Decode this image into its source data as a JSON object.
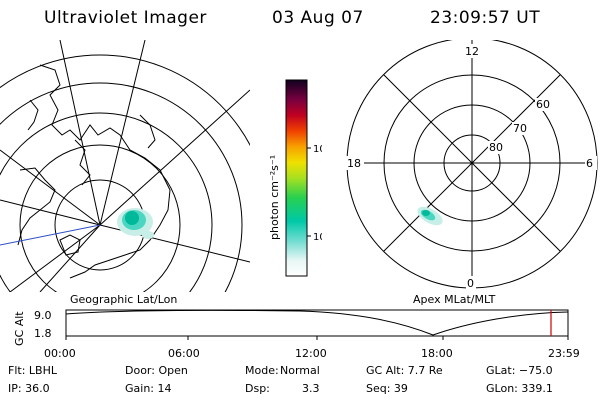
{
  "header": {
    "title": "Ultraviolet Imager",
    "date": "03 Aug 07",
    "time": "23:09:57 UT"
  },
  "colorbar": {
    "label": "photon cm⁻²s⁻¹",
    "ticks": [
      "100",
      "10"
    ]
  },
  "left_plot": {
    "caption": "Geographic Lat/Lon"
  },
  "right_plot": {
    "caption": "Apex  MLat/MLT",
    "mlt_labels": {
      "top": "12",
      "left": "18",
      "right": "6",
      "bottom": "0"
    },
    "lat_labels": [
      "60",
      "70",
      "80"
    ]
  },
  "altitude_strip": {
    "axis_label": "GC Alt",
    "y_ticks": [
      "9.0",
      "1.8"
    ],
    "x_ticks": [
      "00:00",
      "06:00",
      "12:00",
      "18:00",
      "23:59"
    ],
    "marker_color": "#d00000"
  },
  "status": {
    "row1": {
      "flt": "Flt: LBHL",
      "door": "Door: Open",
      "mode_label": "Mode:",
      "mode_value": "Normal",
      "gcalt": "GC Alt: 7.7 Re",
      "glat": "GLat: −75.0"
    },
    "row2": {
      "ip": "IP: 36.0",
      "gain": "Gain: 14",
      "dsp_label": "Dsp:",
      "dsp_value": "3.3",
      "seq": "Seq: 39",
      "glon": "GLon: 339.1"
    }
  },
  "colors": {
    "aurora_core": "#00b89a",
    "aurora_mid": "#4ad6c0",
    "aurora_edge": "#c8eee8",
    "track_line": "#3050c8"
  }
}
